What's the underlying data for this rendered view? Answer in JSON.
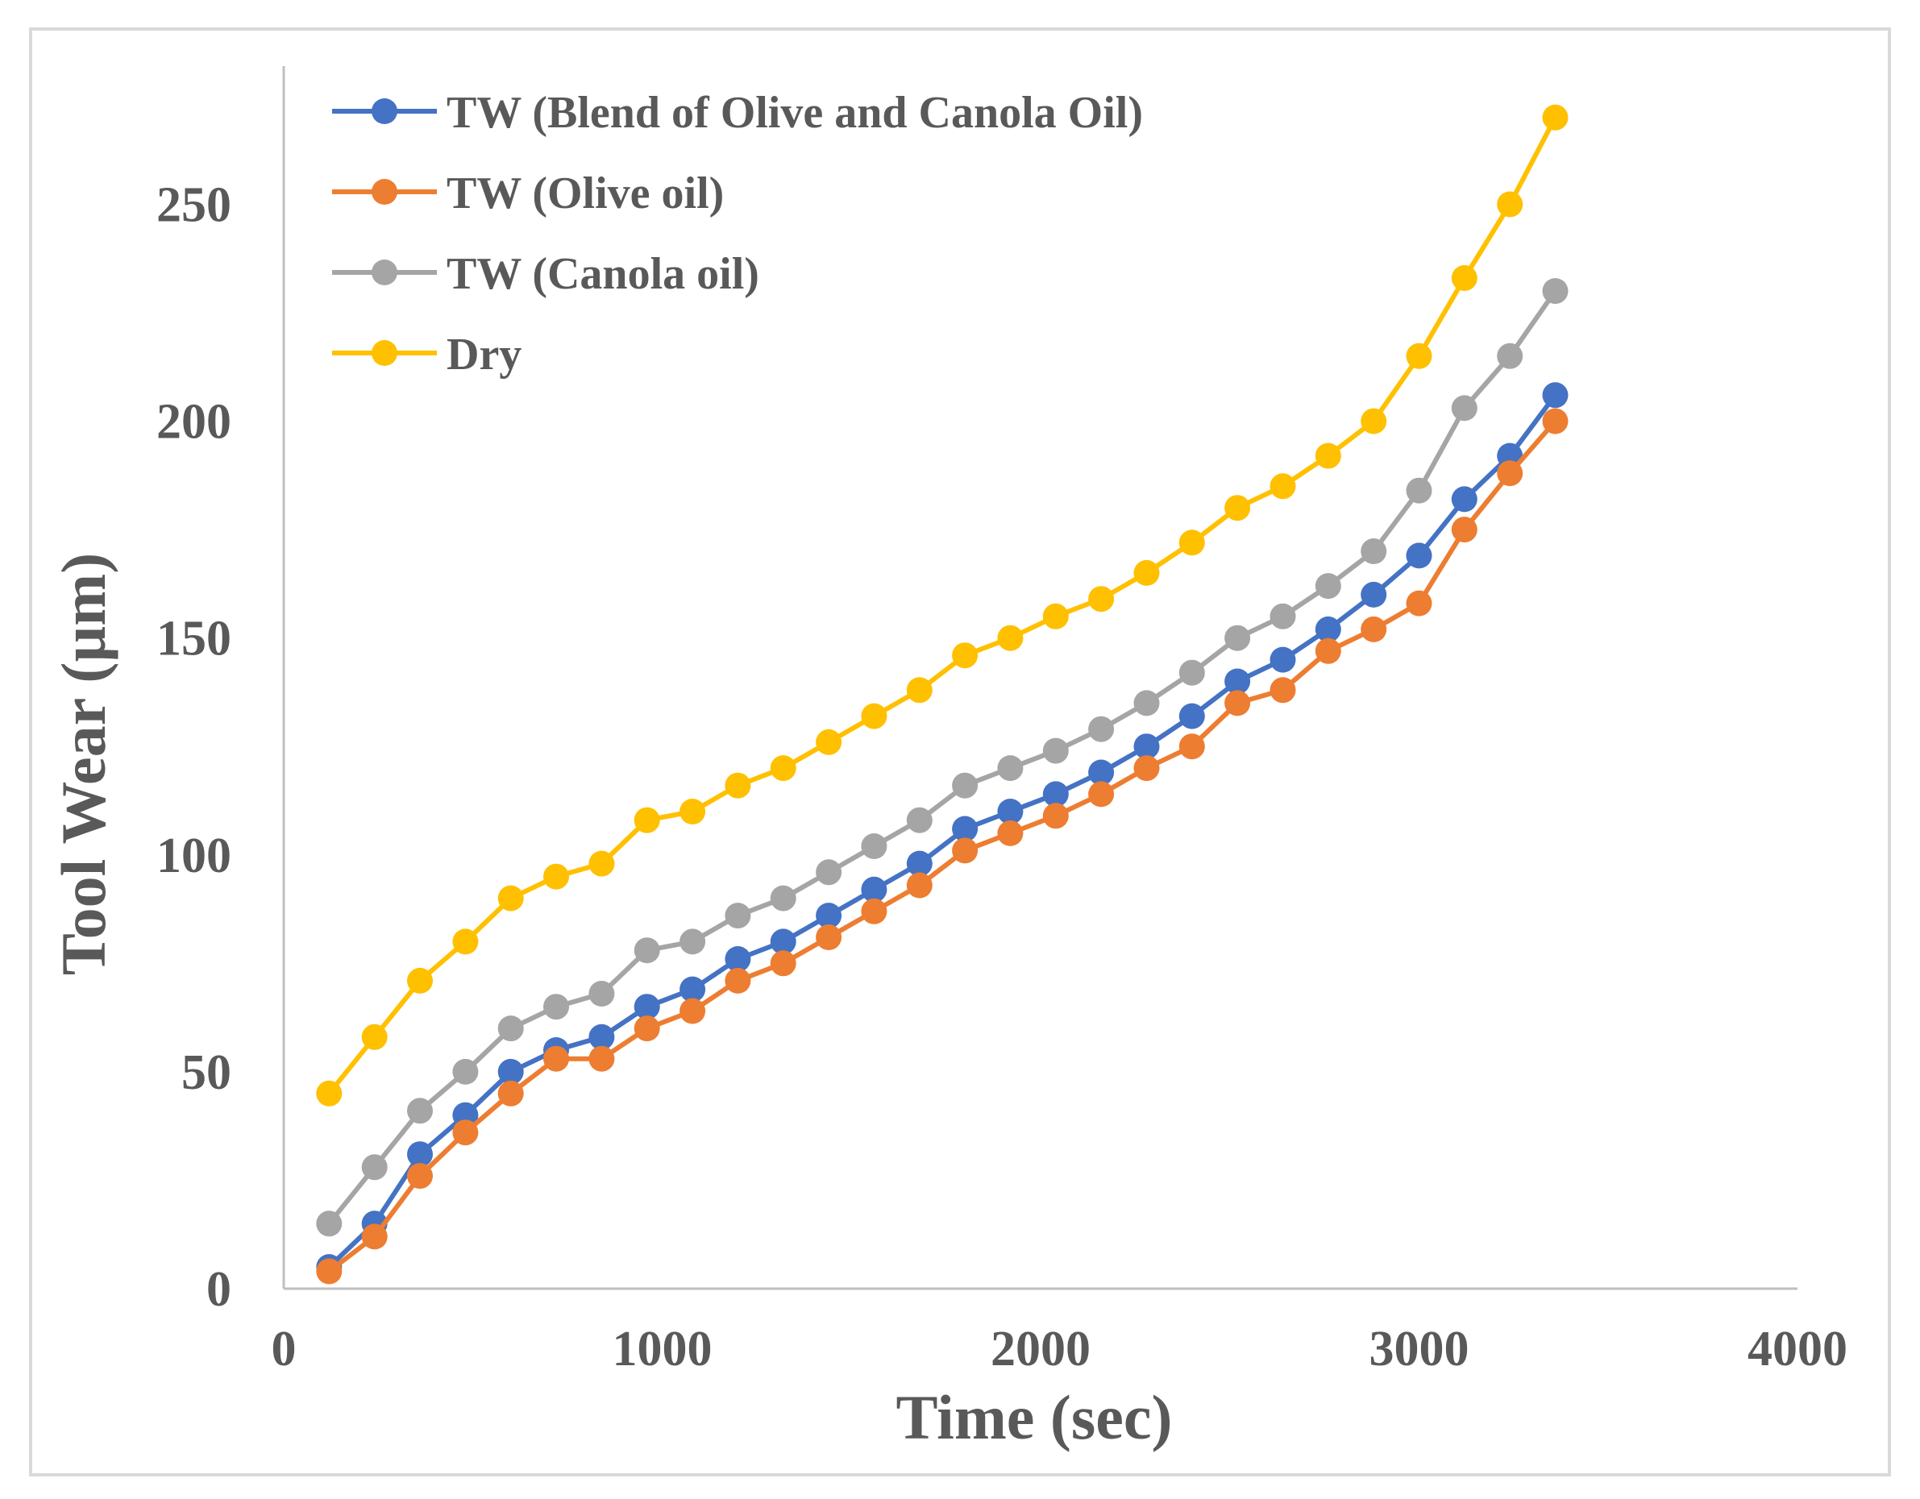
{
  "chart_data": {
    "type": "line",
    "xlabel": "Time (sec)",
    "ylabel": "Tool Wear (µm)",
    "xlim": [
      0,
      4000
    ],
    "ylim": [
      0,
      280
    ],
    "x_ticks": [
      0,
      1000,
      2000,
      3000,
      4000
    ],
    "y_ticks": [
      0,
      50,
      100,
      150,
      200,
      250
    ],
    "x_tick_labels": [
      "0",
      "1000",
      "2000",
      "3000",
      "4000"
    ],
    "y_tick_labels": [
      "0",
      "50",
      "100",
      "150",
      "200",
      "250"
    ],
    "grid": false,
    "legend_position": "top-left",
    "x": [
      120,
      240,
      360,
      480,
      600,
      720,
      840,
      960,
      1080,
      1200,
      1320,
      1440,
      1560,
      1680,
      1800,
      1920,
      2040,
      2160,
      2280,
      2400,
      2520,
      2640,
      2760,
      2880,
      3000,
      3120,
      3240,
      3360
    ],
    "series": [
      {
        "name": "TW (Blend of Olive and Canola Oil)",
        "color": "#4472C4",
        "values": [
          5,
          15,
          31,
          40,
          50,
          55,
          58,
          65,
          69,
          76,
          80,
          86,
          92,
          98,
          106,
          110,
          114,
          119,
          125,
          132,
          140,
          145,
          152,
          160,
          169,
          182,
          192,
          206
        ]
      },
      {
        "name": "TW (Olive oil)",
        "color": "#ED7D31",
        "values": [
          4,
          12,
          26,
          36,
          45,
          53,
          53,
          60,
          64,
          71,
          75,
          81,
          87,
          93,
          101,
          105,
          109,
          114,
          120,
          125,
          135,
          138,
          147,
          152,
          158,
          175,
          188,
          200
        ]
      },
      {
        "name": "TW (Canola oil)",
        "color": "#A5A5A5",
        "values": [
          15,
          28,
          41,
          50,
          60,
          65,
          68,
          78,
          80,
          86,
          90,
          96,
          102,
          108,
          116,
          120,
          124,
          129,
          135,
          142,
          150,
          155,
          162,
          170,
          184,
          203,
          215,
          230
        ]
      },
      {
        "name": "Dry",
        "color": "#FFC000",
        "values": [
          45,
          58,
          71,
          80,
          90,
          95,
          98,
          108,
          110,
          116,
          120,
          126,
          132,
          138,
          146,
          150,
          155,
          159,
          165,
          172,
          180,
          185,
          192,
          200,
          215,
          233,
          250,
          270
        ]
      }
    ]
  }
}
